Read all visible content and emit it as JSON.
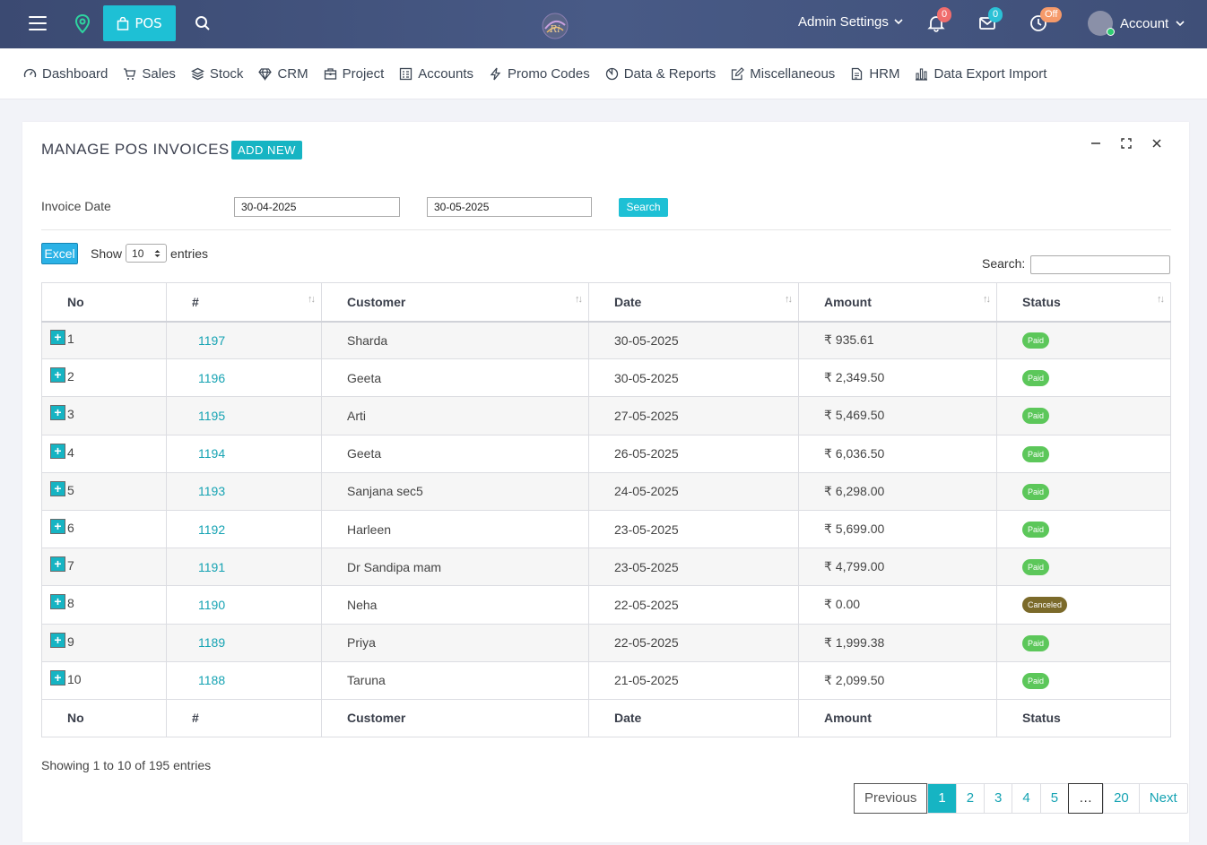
{
  "topbar": {
    "pos_label": "POS",
    "admin_settings": "Admin Settings",
    "notifications_count": "0",
    "messages_count": "0",
    "clock_status": "Off",
    "account_label": "Account",
    "icons": [
      "hamburger-icon",
      "location-icon",
      "shopping-bag-icon",
      "search-icon",
      "bell-icon",
      "mail-icon",
      "clock-icon",
      "chevron-down-icon"
    ]
  },
  "menu": {
    "items": [
      {
        "label": "Dashboard",
        "icon": "dashboard-icon"
      },
      {
        "label": "Sales",
        "icon": "cart-icon"
      },
      {
        "label": "Stock",
        "icon": "layers-icon"
      },
      {
        "label": "CRM",
        "icon": "diamond-icon"
      },
      {
        "label": "Project",
        "icon": "briefcase-icon"
      },
      {
        "label": "Accounts",
        "icon": "ledger-icon"
      },
      {
        "label": "Promo Codes",
        "icon": "bolt-icon"
      },
      {
        "label": "Data & Reports",
        "icon": "pie-icon"
      },
      {
        "label": "Miscellaneous",
        "icon": "edit-icon"
      },
      {
        "label": "HRM",
        "icon": "document-icon"
      },
      {
        "label": "Data Export Import",
        "icon": "bar-chart-icon"
      }
    ]
  },
  "card": {
    "title": "MANAGE POS INVOICES",
    "add_new": "ADD NEW",
    "filter_label": "Invoice Date",
    "date_from": "30-04-2025",
    "date_to": "30-05-2025",
    "search_button": "Search",
    "excel_button": "Excel",
    "show_label": "Show",
    "entries_value": "10",
    "entries_label": "entries",
    "search_label": "Search:",
    "search_value": ""
  },
  "table": {
    "columns": [
      "No",
      "#",
      "Customer",
      "Date",
      "Amount",
      "Status"
    ],
    "rows": [
      {
        "no": "1",
        "invoice": "1197",
        "customer": "Sharda",
        "date": "30-05-2025",
        "amount": "₹ 935.61",
        "status": "Paid"
      },
      {
        "no": "2",
        "invoice": "1196",
        "customer": "Geeta",
        "date": "30-05-2025",
        "amount": "₹ 2,349.50",
        "status": "Paid"
      },
      {
        "no": "3",
        "invoice": "1195",
        "customer": "Arti",
        "date": "27-05-2025",
        "amount": "₹ 5,469.50",
        "status": "Paid"
      },
      {
        "no": "4",
        "invoice": "1194",
        "customer": "Geeta",
        "date": "26-05-2025",
        "amount": "₹ 6,036.50",
        "status": "Paid"
      },
      {
        "no": "5",
        "invoice": "1193",
        "customer": "Sanjana sec5",
        "date": "24-05-2025",
        "amount": "₹ 6,298.00",
        "status": "Paid"
      },
      {
        "no": "6",
        "invoice": "1192",
        "customer": "Harleen",
        "date": "23-05-2025",
        "amount": "₹ 5,699.00",
        "status": "Paid"
      },
      {
        "no": "7",
        "invoice": "1191",
        "customer": "Dr Sandipa mam",
        "date": "23-05-2025",
        "amount": "₹ 4,799.00",
        "status": "Paid"
      },
      {
        "no": "8",
        "invoice": "1190",
        "customer": "Neha",
        "date": "22-05-2025",
        "amount": "₹ 0.00",
        "status": "Canceled"
      },
      {
        "no": "9",
        "invoice": "1189",
        "customer": "Priya",
        "date": "22-05-2025",
        "amount": "₹ 1,999.38",
        "status": "Paid"
      },
      {
        "no": "10",
        "invoice": "1188",
        "customer": "Taruna",
        "date": "21-05-2025",
        "amount": "₹ 2,099.50",
        "status": "Paid"
      }
    ]
  },
  "footer": {
    "showing": "Showing 1 to 10 of 195 entries",
    "pagination": {
      "previous": "Previous",
      "pages": [
        "1",
        "2",
        "3",
        "4",
        "5"
      ],
      "ellipsis": "…",
      "last": "20",
      "next": "Next",
      "current": "1"
    }
  },
  "colors": {
    "accent": "#1ec0d5",
    "paid": "#5cc75a",
    "canceled": "#7b6a2a",
    "bell_badge": "#f06d6d",
    "mail_badge": "#2bc1d6",
    "clock_badge": "#f59a6a"
  }
}
